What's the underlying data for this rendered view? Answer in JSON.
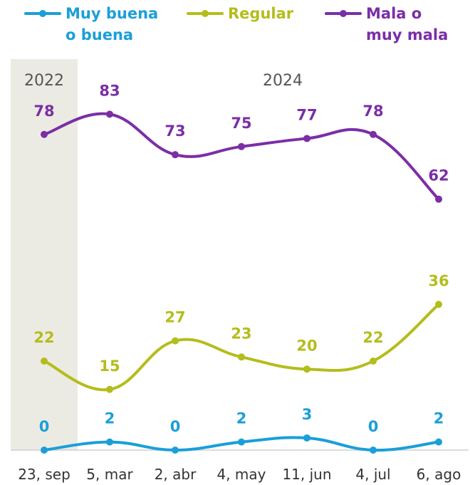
{
  "chart_data": {
    "type": "line",
    "categories": [
      "23, sep",
      "5, mar",
      "2, abr",
      "4, may",
      "11, jun",
      "4, jul",
      "6, ago"
    ],
    "year_labels": [
      "2022",
      "2024"
    ],
    "ylim": [
      0,
      100
    ],
    "grid": false,
    "legend_position": "top",
    "series": [
      {
        "name_lines": [
          "Muy buena",
          "o buena"
        ],
        "color": "#1a9fd8",
        "values": [
          0,
          2,
          0,
          2,
          3,
          0,
          2
        ]
      },
      {
        "name_lines": [
          "Regular",
          ""
        ],
        "color": "#b4bd1c",
        "values": [
          22,
          15,
          27,
          23,
          20,
          22,
          36
        ]
      },
      {
        "name_lines": [
          "Mala o",
          "muy mala"
        ],
        "color": "#7b2ea6",
        "values": [
          78,
          83,
          73,
          75,
          77,
          78,
          62
        ]
      }
    ],
    "highlight_band_color": "#ecebe3"
  }
}
